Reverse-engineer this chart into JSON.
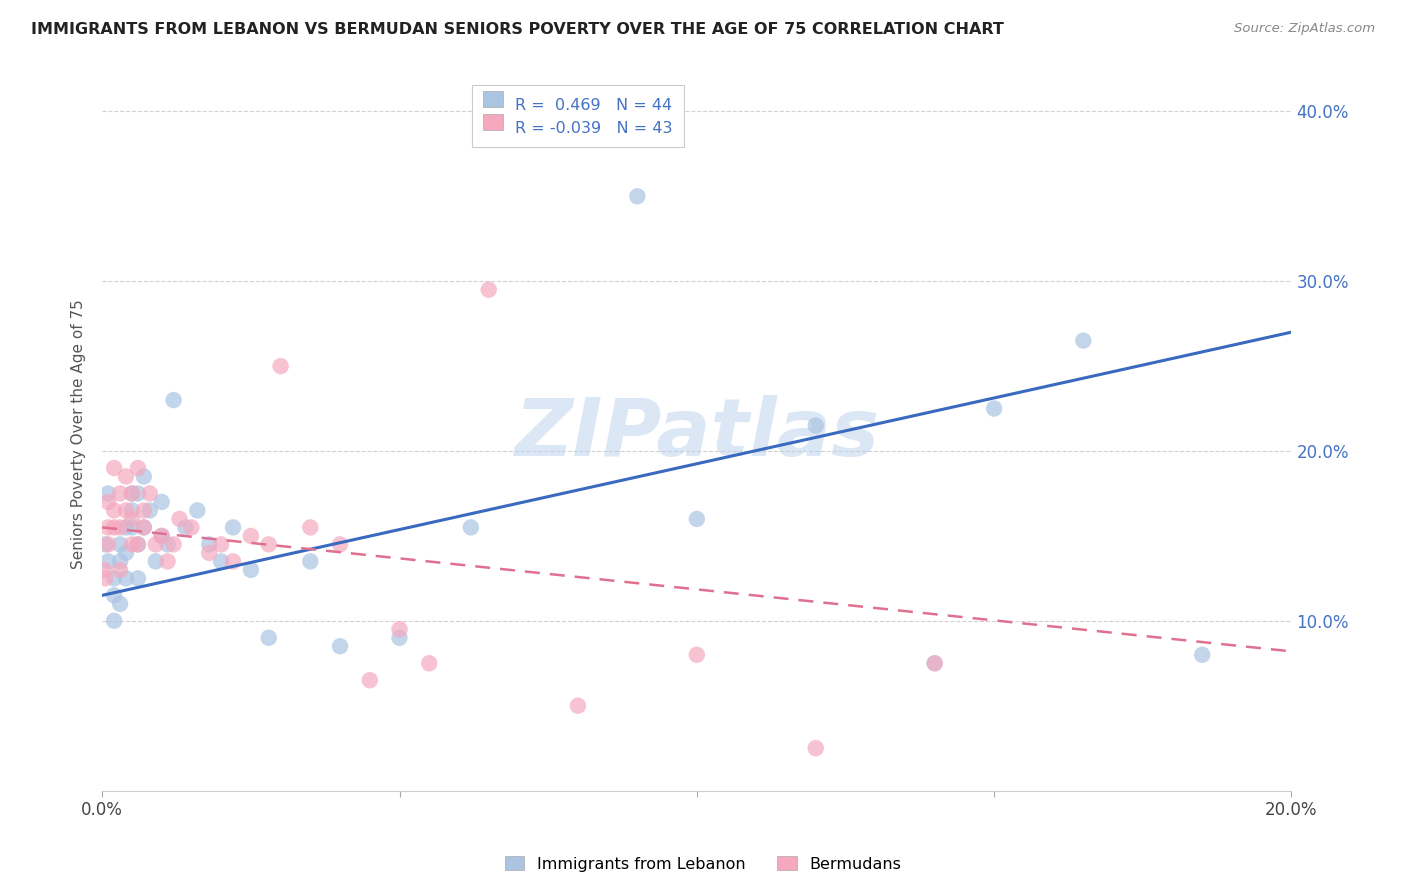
{
  "title": "IMMIGRANTS FROM LEBANON VS BERMUDAN SENIORS POVERTY OVER THE AGE OF 75 CORRELATION CHART",
  "source": "Source: ZipAtlas.com",
  "ylabel": "Seniors Poverty Over the Age of 75",
  "R1": 0.469,
  "N1": 44,
  "R2": -0.039,
  "N2": 43,
  "color1": "#aac4e2",
  "color2": "#f5a8be",
  "line_color1": "#3a6abf",
  "line_color2": "#e07090",
  "xlim": [
    0,
    0.2
  ],
  "ylim": [
    0,
    0.42
  ],
  "watermark": "ZIPatlas",
  "legend_label1": "Immigrants from Lebanon",
  "legend_label2": "Bermudans",
  "blue_line_x0": 0.0,
  "blue_line_y0": 0.115,
  "blue_line_x1": 0.2,
  "blue_line_y1": 0.27,
  "pink_line_x0": 0.0,
  "pink_line_y0": 0.155,
  "pink_line_x1": 0.2,
  "pink_line_y1": 0.082,
  "blue_x": [
    0.0005,
    0.001,
    0.001,
    0.002,
    0.002,
    0.002,
    0.003,
    0.003,
    0.003,
    0.004,
    0.004,
    0.004,
    0.005,
    0.005,
    0.005,
    0.006,
    0.006,
    0.006,
    0.007,
    0.007,
    0.008,
    0.009,
    0.01,
    0.01,
    0.011,
    0.012,
    0.014,
    0.016,
    0.018,
    0.02,
    0.022,
    0.025,
    0.028,
    0.035,
    0.04,
    0.05,
    0.062,
    0.09,
    0.1,
    0.12,
    0.14,
    0.15,
    0.165,
    0.185
  ],
  "blue_y": [
    0.145,
    0.175,
    0.135,
    0.125,
    0.115,
    0.1,
    0.135,
    0.145,
    0.11,
    0.155,
    0.125,
    0.14,
    0.155,
    0.165,
    0.175,
    0.145,
    0.175,
    0.125,
    0.185,
    0.155,
    0.165,
    0.135,
    0.15,
    0.17,
    0.145,
    0.23,
    0.155,
    0.165,
    0.145,
    0.135,
    0.155,
    0.13,
    0.09,
    0.135,
    0.085,
    0.09,
    0.155,
    0.35,
    0.16,
    0.215,
    0.075,
    0.225,
    0.265,
    0.08
  ],
  "pink_x": [
    0.0003,
    0.0005,
    0.001,
    0.001,
    0.001,
    0.002,
    0.002,
    0.002,
    0.003,
    0.003,
    0.003,
    0.004,
    0.004,
    0.005,
    0.005,
    0.005,
    0.006,
    0.006,
    0.007,
    0.007,
    0.008,
    0.009,
    0.01,
    0.011,
    0.012,
    0.013,
    0.015,
    0.018,
    0.02,
    0.022,
    0.025,
    0.028,
    0.03,
    0.035,
    0.04,
    0.045,
    0.05,
    0.055,
    0.065,
    0.08,
    0.1,
    0.12,
    0.14
  ],
  "pink_y": [
    0.13,
    0.125,
    0.145,
    0.17,
    0.155,
    0.155,
    0.165,
    0.19,
    0.155,
    0.175,
    0.13,
    0.185,
    0.165,
    0.16,
    0.145,
    0.175,
    0.145,
    0.19,
    0.155,
    0.165,
    0.175,
    0.145,
    0.15,
    0.135,
    0.145,
    0.16,
    0.155,
    0.14,
    0.145,
    0.135,
    0.15,
    0.145,
    0.25,
    0.155,
    0.145,
    0.065,
    0.095,
    0.075,
    0.295,
    0.05,
    0.08,
    0.025,
    0.075
  ]
}
